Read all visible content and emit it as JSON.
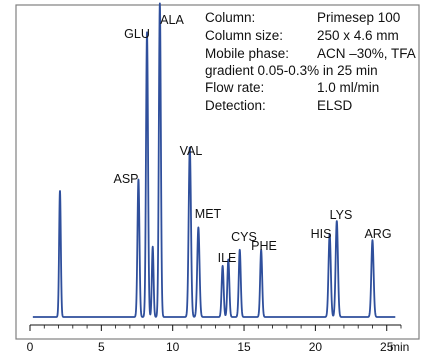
{
  "chart_data": {
    "type": "line",
    "title": "",
    "xlabel": "",
    "ylabel": "",
    "x_unit_label": "min",
    "xlim": [
      0,
      26
    ],
    "ylim": [
      0,
      100
    ],
    "x_ticks": [
      "0",
      "5",
      "10",
      "15",
      "20",
      "25"
    ],
    "x_tick_values": [
      0,
      5,
      10,
      15,
      20,
      25
    ],
    "grid": false,
    "line_color": "#2f4f9c",
    "border_color": "#808080",
    "baseline": 2.5,
    "peaks": [
      {
        "t": 2.1,
        "h": 39.5,
        "w": 0.06,
        "label": ""
      },
      {
        "t": 7.6,
        "h": 43,
        "w": 0.07,
        "label": "ASP"
      },
      {
        "t": 8.2,
        "h": 89,
        "w": 0.07,
        "label": "GLU"
      },
      {
        "t": 8.6,
        "h": 22,
        "w": 0.06,
        "label": ""
      },
      {
        "t": 9.1,
        "h": 98,
        "w": 0.07,
        "label": "ALA"
      },
      {
        "t": 11.2,
        "h": 53,
        "w": 0.08,
        "label": "VAL"
      },
      {
        "t": 11.8,
        "h": 28,
        "w": 0.08,
        "label": "MET"
      },
      {
        "t": 13.5,
        "h": 16,
        "w": 0.07,
        "label": ""
      },
      {
        "t": 13.9,
        "h": 18,
        "w": 0.07,
        "label": "ILE"
      },
      {
        "t": 14.7,
        "h": 21,
        "w": 0.07,
        "label": "CYS"
      },
      {
        "t": 16.2,
        "h": 21,
        "w": 0.07,
        "label": "PHE"
      },
      {
        "t": 21.0,
        "h": 26,
        "w": 0.08,
        "label": "HIS"
      },
      {
        "t": 21.5,
        "h": 30,
        "w": 0.08,
        "label": "LYS"
      },
      {
        "t": 24.0,
        "h": 24,
        "w": 0.08,
        "label": "ARG"
      }
    ],
    "conditions": [
      {
        "key": "Column:",
        "value": "Primesep 100"
      },
      {
        "key": "Column size:",
        "value": "250 x 4.6 mm"
      },
      {
        "key": "Mobile phase:",
        "value": "ACN –30%, TFA"
      },
      {
        "key": "gradient 0.05-0.3% in 25 min",
        "value": ""
      },
      {
        "key": "Flow rate:",
        "value": "1.0 ml/min"
      },
      {
        "key": "Detection:",
        "value": "ELSD"
      }
    ]
  }
}
